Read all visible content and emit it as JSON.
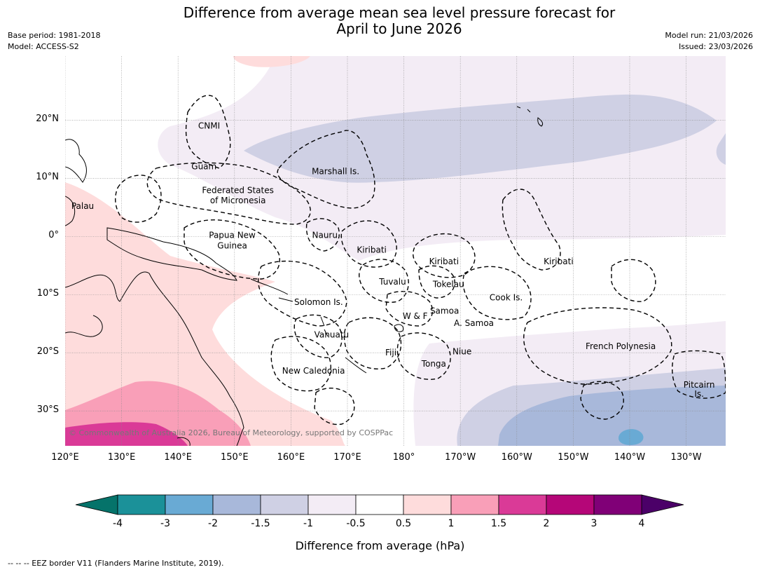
{
  "title_line1": "Difference from average mean sea level pressure forecast for",
  "title_line2": "April to June 2026",
  "base_period": "Base period: 1981-2018",
  "model": "Model: ACCESS-S2",
  "model_run": "Model run: 21/03/2026",
  "issued": "Issued: 23/03/2026",
  "copyright": "© Commonwealth of Australia 2026, Bureau of Meteorology, supported by COSPPac",
  "footer": "--  --  -- EEZ border V11 (Flanders Marine Institute, 2019).",
  "map": {
    "lon_range": [
      120,
      237
    ],
    "lat_range": [
      -36,
      31
    ],
    "lon_ticks": [
      {
        "value": 120,
        "label": "120°E"
      },
      {
        "value": 130,
        "label": "130°E"
      },
      {
        "value": 140,
        "label": "140°E"
      },
      {
        "value": 150,
        "label": "150°E"
      },
      {
        "value": 160,
        "label": "160°E"
      },
      {
        "value": 170,
        "label": "170°E"
      },
      {
        "value": 180,
        "label": "180°"
      },
      {
        "value": 190,
        "label": "170°W"
      },
      {
        "value": 200,
        "label": "160°W"
      },
      {
        "value": 210,
        "label": "150°W"
      },
      {
        "value": 220,
        "label": "140°W"
      },
      {
        "value": 230,
        "label": "130°W"
      }
    ],
    "lat_ticks": [
      {
        "value": 20,
        "label": "20°N"
      },
      {
        "value": 10,
        "label": "10°N"
      },
      {
        "value": 0,
        "label": "0°"
      },
      {
        "value": -10,
        "label": "10°S"
      },
      {
        "value": -20,
        "label": "20°S"
      },
      {
        "value": -30,
        "label": "30°S"
      }
    ],
    "regions": [
      {
        "name": "CNMI",
        "lon": 145.5,
        "lat": 19.0
      },
      {
        "name": "Guam",
        "lon": 144.6,
        "lat": 12.0
      },
      {
        "name": "Marshall Is.",
        "lon": 167.9,
        "lat": 11.2
      },
      {
        "name": "Federated States",
        "lon": 150.6,
        "lat": 7.9
      },
      {
        "name": "of Micronesia",
        "lon": 150.6,
        "lat": 6.2
      },
      {
        "name": "Palau",
        "lon": 123.1,
        "lat": 5.2
      },
      {
        "name": "Papua New",
        "lon": 149.6,
        "lat": 0.2
      },
      {
        "name": "Guinea",
        "lon": 149.6,
        "lat": -1.6
      },
      {
        "name": "Nauru",
        "lon": 166.0,
        "lat": 0.2
      },
      {
        "name": "Kiribati",
        "lon": 174.3,
        "lat": -2.3
      },
      {
        "name": "Kiribati",
        "lon": 187.1,
        "lat": -4.3
      },
      {
        "name": "Kiribati",
        "lon": 207.4,
        "lat": -4.3
      },
      {
        "name": "Tuvalu",
        "lon": 178.0,
        "lat": -7.8
      },
      {
        "name": "Tokelau",
        "lon": 187.9,
        "lat": -8.2
      },
      {
        "name": "Solomon Is.",
        "lon": 164.9,
        "lat": -11.3
      },
      {
        "name": "Cook Is.",
        "lon": 198.1,
        "lat": -10.5
      },
      {
        "name": "Samoa",
        "lon": 187.2,
        "lat": -12.8
      },
      {
        "name": "W & F",
        "lon": 182.0,
        "lat": -13.7
      },
      {
        "name": "A. Samoa",
        "lon": 192.4,
        "lat": -14.9
      },
      {
        "name": "Vanuatu",
        "lon": 167.2,
        "lat": -16.9
      },
      {
        "name": "French Polynesia",
        "lon": 218.4,
        "lat": -18.9
      },
      {
        "name": "Fiji",
        "lon": 177.7,
        "lat": -20.0
      },
      {
        "name": "Niue",
        "lon": 190.3,
        "lat": -19.8
      },
      {
        "name": "Tonga",
        "lon": 185.3,
        "lat": -21.9
      },
      {
        "name": "New Caledonia",
        "lon": 164.0,
        "lat": -23.1
      },
      {
        "name": "Pitcairn",
        "lon": 232.3,
        "lat": -25.5
      },
      {
        "name": "Is.",
        "lon": 232.3,
        "lat": -27.1
      }
    ]
  },
  "colorbar": {
    "ticks": [
      "-4",
      "-3",
      "-2",
      "-1.5",
      "-1",
      "-0.5",
      "0.5",
      "1",
      "1.5",
      "2",
      "3",
      "4"
    ],
    "colors": [
      "#1b9199",
      "#69aad4",
      "#a8b8da",
      "#cfd0e4",
      "#f3ecf5",
      "#ffffff",
      "#fedcdc",
      "#f99fb8",
      "#da3a97",
      "#b50678",
      "#800077"
    ],
    "extend_low_color": "#05736a",
    "extend_high_color": "#4b0068",
    "label": "Difference from average (hPa)"
  }
}
